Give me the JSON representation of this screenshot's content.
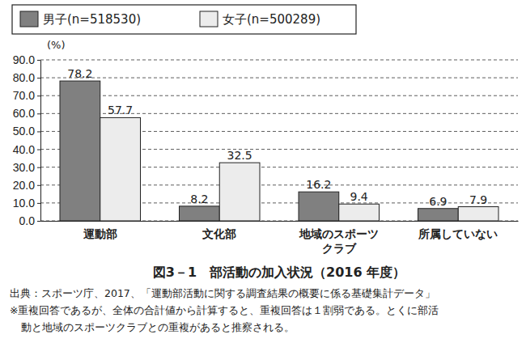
{
  "chart_data": {
    "type": "bar",
    "title": "図3－1　部活動の加入状況（2016 年度）",
    "ylabel": "(%)",
    "categories": [
      "運動部",
      "文化部",
      "地域のスポーツ\nクラブ",
      "所属していない"
    ],
    "series": [
      {
        "name": "男子(n=518530)",
        "color": "#808080",
        "values": [
          78.2,
          8.2,
          16.2,
          6.9
        ]
      },
      {
        "name": "女子(n=500289)",
        "color": "#ececec",
        "values": [
          57.7,
          32.5,
          9.4,
          7.9
        ]
      }
    ],
    "ylim": [
      0,
      90
    ],
    "yticks": [
      {
        "value": 0,
        "label": "0.0"
      },
      {
        "value": 10,
        "label": "10.0"
      },
      {
        "value": 20,
        "label": "20.0"
      },
      {
        "value": 30,
        "label": "30.0"
      },
      {
        "value": 40,
        "label": "40.0"
      },
      {
        "value": 50,
        "label": "50.0"
      },
      {
        "value": 60,
        "label": "60.0"
      },
      {
        "value": 70,
        "label": "70.0"
      },
      {
        "value": 80,
        "label": "80.0"
      },
      {
        "value": 90,
        "label": "90.0"
      }
    ],
    "grid": true,
    "legend": "top",
    "data_labels": true,
    "annotations": [
      "出典：スポーツ庁、2017、「運動部活動に関する調査結果の概要に係る基礎集計データ」",
      "※重複回答であるが、全体の合計値から計算すると、重複回答は１割弱である。とくに部活",
      "動と地域のスポーツクラブとの重複があると推察される。"
    ]
  }
}
